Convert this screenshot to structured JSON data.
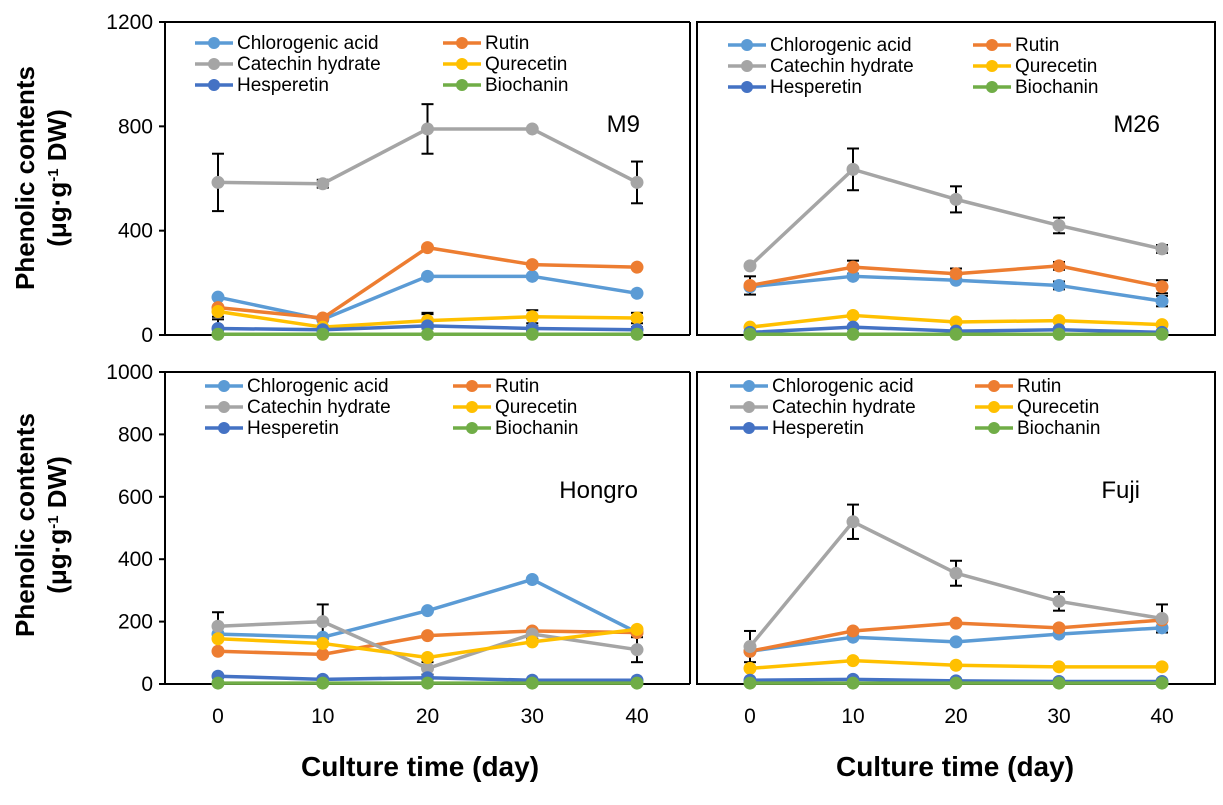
{
  "ylabel": {
    "line1": "Phenolic contents",
    "line2_prefix": "(μg·g",
    "line2_sup": "-1",
    "line2_suffix": " DW)"
  },
  "xlabel": "Culture time (day)",
  "colors": {
    "Chlorogenic acid": "#5B9BD5",
    "Rutin": "#ED7D31",
    "Catechin hydrate": "#A5A5A5",
    "Qurecetin": "#FFC000",
    "Hesperetin": "#4472C4",
    "Biochanin": "#70AD47",
    "errorbar": "#000000",
    "frame": "#000000"
  },
  "legend": [
    "Chlorogenic acid",
    "Rutin",
    "Catechin hydrate",
    "Qurecetin",
    "Hesperetin",
    "Biochanin"
  ],
  "chart_data": [
    {
      "type": "line",
      "panel": "top-left",
      "label": "M9",
      "x": [
        0,
        10,
        20,
        30,
        40
      ],
      "xticks": [
        "0",
        "10",
        "20",
        "30",
        "40"
      ],
      "ylim": [
        0,
        1200
      ],
      "yticks": [
        "0",
        "400",
        "800",
        "1200"
      ],
      "series": [
        {
          "name": "Chlorogenic acid",
          "values": [
            145,
            60,
            225,
            225,
            160
          ]
        },
        {
          "name": "Rutin",
          "values": [
            105,
            65,
            335,
            270,
            260
          ]
        },
        {
          "name": "Catechin hydrate",
          "values": [
            585,
            580,
            790,
            790,
            585
          ],
          "errors": [
            110,
            15,
            95,
            0,
            80
          ]
        },
        {
          "name": "Qurecetin",
          "values": [
            90,
            30,
            55,
            70,
            65
          ],
          "errors": [
            20,
            25,
            30,
            25,
            20
          ]
        },
        {
          "name": "Hesperetin",
          "values": [
            25,
            20,
            35,
            25,
            20
          ],
          "errors": [
            35,
            10,
            45,
            10,
            10
          ]
        },
        {
          "name": "Biochanin",
          "values": [
            3,
            3,
            3,
            3,
            3
          ]
        }
      ]
    },
    {
      "type": "line",
      "panel": "top-right",
      "label": "M26",
      "x": [
        0,
        10,
        20,
        30,
        40
      ],
      "xticks": [
        "0",
        "10",
        "20",
        "30",
        "40"
      ],
      "ylim": [
        0,
        1200
      ],
      "yticks": [],
      "series": [
        {
          "name": "Chlorogenic acid",
          "values": [
            185,
            225,
            210,
            190,
            130
          ],
          "errors": [
            0,
            0,
            0,
            15,
            20
          ]
        },
        {
          "name": "Rutin",
          "values": [
            190,
            260,
            235,
            265,
            185
          ],
          "errors": [
            35,
            25,
            20,
            15,
            25
          ]
        },
        {
          "name": "Catechin hydrate",
          "values": [
            265,
            635,
            520,
            420,
            330
          ],
          "errors": [
            0,
            80,
            50,
            30,
            15
          ]
        },
        {
          "name": "Qurecetin",
          "values": [
            30,
            75,
            50,
            55,
            40
          ]
        },
        {
          "name": "Hesperetin",
          "values": [
            10,
            30,
            15,
            20,
            10
          ]
        },
        {
          "name": "Biochanin",
          "values": [
            3,
            3,
            3,
            3,
            3
          ]
        }
      ]
    },
    {
      "type": "line",
      "panel": "bottom-left",
      "label": "Hongro",
      "x": [
        0,
        10,
        20,
        30,
        40
      ],
      "xticks": [
        "0",
        "10",
        "20",
        "30",
        "40"
      ],
      "ylim": [
        0,
        1000
      ],
      "yticks": [
        "0",
        "200",
        "400",
        "600",
        "800",
        "1000"
      ],
      "series": [
        {
          "name": "Chlorogenic acid",
          "values": [
            160,
            150,
            235,
            335,
            165
          ]
        },
        {
          "name": "Rutin",
          "values": [
            105,
            95,
            155,
            170,
            165
          ]
        },
        {
          "name": "Catechin hydrate",
          "values": [
            185,
            200,
            50,
            160,
            110
          ],
          "errors": [
            45,
            55,
            20,
            15,
            40
          ]
        },
        {
          "name": "Qurecetin",
          "values": [
            145,
            130,
            85,
            135,
            175
          ]
        },
        {
          "name": "Hesperetin",
          "values": [
            25,
            15,
            20,
            12,
            12
          ]
        },
        {
          "name": "Biochanin",
          "values": [
            3,
            3,
            3,
            3,
            3
          ]
        }
      ]
    },
    {
      "type": "line",
      "panel": "bottom-right",
      "label": "Fuji",
      "x": [
        0,
        10,
        20,
        30,
        40
      ],
      "xticks": [
        "0",
        "10",
        "20",
        "30",
        "40"
      ],
      "ylim": [
        0,
        1000
      ],
      "yticks": [],
      "series": [
        {
          "name": "Chlorogenic acid",
          "values": [
            105,
            150,
            135,
            160,
            180
          ]
        },
        {
          "name": "Rutin",
          "values": [
            105,
            170,
            195,
            180,
            205
          ]
        },
        {
          "name": "Catechin hydrate",
          "values": [
            120,
            520,
            355,
            265,
            210
          ],
          "errors": [
            50,
            55,
            40,
            30,
            45
          ]
        },
        {
          "name": "Qurecetin",
          "values": [
            50,
            75,
            60,
            55,
            55
          ]
        },
        {
          "name": "Hesperetin",
          "values": [
            12,
            15,
            10,
            8,
            8
          ]
        },
        {
          "name": "Biochanin",
          "values": [
            3,
            3,
            3,
            3,
            3
          ]
        }
      ]
    }
  ]
}
